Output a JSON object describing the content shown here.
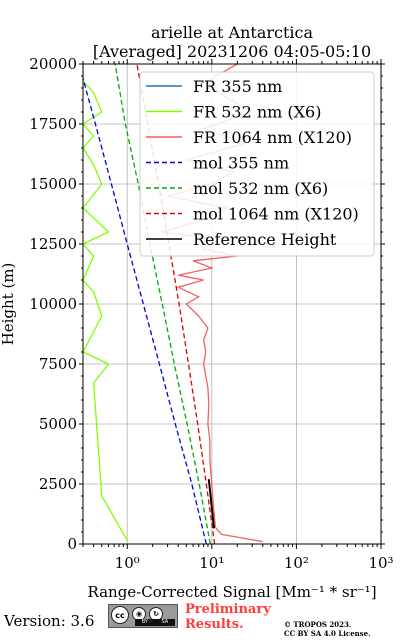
{
  "chart_data": {
    "type": "line",
    "title": "arielle at Antarctica",
    "subtitle": "[Averaged] 20231206 04:05-05:10",
    "xlabel": "Range-Corrected Signal [Mm⁻¹ * sr⁻¹]",
    "ylabel": "Height (m)",
    "xscale": "log",
    "xlim": [
      0.3,
      1000
    ],
    "ylim": [
      0,
      20000
    ],
    "xticks": [
      "10⁰",
      "10¹",
      "10²",
      "10³"
    ],
    "yticks": [
      "0",
      "2500",
      "5000",
      "7500",
      "10000",
      "12500",
      "15000",
      "17500",
      "20000"
    ],
    "grid": true,
    "legend_position": "top-right",
    "series": [
      {
        "name": "FR 355 nm",
        "color": "#1f77b4",
        "style": "solid",
        "x": [],
        "y": []
      },
      {
        "name": "FR 532 nm (X6)",
        "color": "#80ff00",
        "style": "solid",
        "x": [
          1.0,
          0.5,
          0.4,
          0.6,
          0.3,
          0.5,
          0.4,
          0.3,
          0.4,
          0.3,
          0.6,
          0.3,
          0.5,
          0.4,
          0.3,
          0.4,
          0.3,
          0.5,
          0.4,
          0.3,
          0.3
        ],
        "y": [
          150,
          2000,
          6700,
          7500,
          8000,
          9500,
          10500,
          11000,
          12000,
          12500,
          13000,
          14000,
          15000,
          15800,
          16500,
          17000,
          17500,
          18000,
          18800,
          19300,
          20000
        ]
      },
      {
        "name": "FR 1064 nm (X120)",
        "color": "#f26060",
        "style": "solid",
        "x": [
          40,
          13,
          11,
          10.5,
          10,
          9.5,
          9.5,
          9,
          9.2,
          9,
          8.5,
          8,
          8.5,
          8,
          9,
          7,
          5,
          7,
          4,
          8,
          4,
          10,
          6,
          20,
          8,
          12,
          2.5,
          8,
          15,
          3,
          10,
          18,
          5,
          25,
          8,
          30,
          12,
          10,
          20
        ],
        "y": [
          100,
          400,
          700,
          1500,
          2500,
          3500,
          4300,
          5000,
          5800,
          6500,
          7000,
          7500,
          8000,
          8500,
          9000,
          9500,
          10000,
          10300,
          10700,
          11000,
          11200,
          11500,
          11800,
          12000,
          12300,
          12700,
          13000,
          13500,
          14000,
          14500,
          15000,
          15500,
          16000,
          16700,
          17300,
          18000,
          18800,
          19400,
          20000
        ]
      },
      {
        "name": "mol 355 nm",
        "color": "#0000dd",
        "style": "dashed",
        "x": [
          8.6,
          5.8,
          3.7,
          2.4,
          1.55,
          1.0,
          0.65,
          0.42,
          0.3
        ],
        "y": [
          0,
          2500,
          5000,
          7500,
          10000,
          12500,
          15000,
          17500,
          19400
        ]
      },
      {
        "name": "mol 532 nm (X6)",
        "color": "#00aa00",
        "style": "dashed",
        "x": [
          9.6,
          7.1,
          5.1,
          3.6,
          2.6,
          1.85,
          1.35,
          0.95,
          0.72
        ],
        "y": [
          0,
          2500,
          5000,
          7500,
          10000,
          12500,
          15000,
          17500,
          20000
        ]
      },
      {
        "name": "mol 1064 nm (X120)",
        "color": "#dd0000",
        "style": "dashed",
        "x": [
          10.8,
          8.6,
          6.8,
          5.3,
          4.1,
          3.1,
          2.35,
          1.75,
          1.3
        ],
        "y": [
          0,
          2500,
          5000,
          7500,
          10000,
          12500,
          15000,
          17500,
          20000
        ]
      },
      {
        "name": "Reference Height",
        "color": "#000000",
        "style": "solid",
        "x": [
          10.6,
          9.2
        ],
        "y": [
          650,
          2700
        ]
      }
    ]
  },
  "footer": {
    "version": "Version: 3.6",
    "license_badge": [
      "cc",
      "BY",
      "SA"
    ],
    "preliminary": [
      "Preliminary",
      "Results."
    ],
    "copyright": [
      "© TROPOS 2023.",
      "CC BY SA 4.0 License."
    ]
  }
}
